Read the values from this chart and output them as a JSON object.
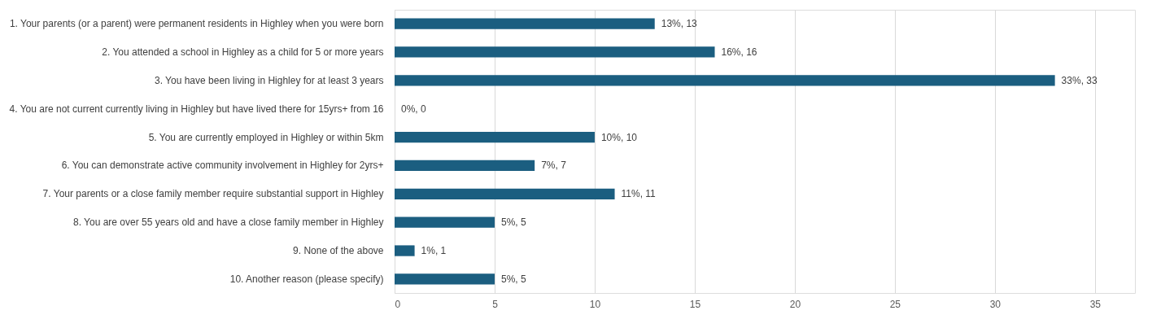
{
  "chart_data": {
    "type": "bar",
    "orientation": "horizontal",
    "categories": [
      "1. Your parents (or a parent) were permanent residents in Highley when you were born",
      "2. You attended a school in Highley as a child for 5 or more years",
      "3. You have been living in Highley for at least 3 years",
      "4. You are not current currently living in Highley but have lived there for 15yrs+ from 16",
      "5. You are currently employed in Highley or within 5km",
      "6. You can demonstrate active community involvement in Highley for 2yrs+",
      "7. Your parents or a close family member require substantial support in Highley",
      "8. You are over 55 years old and have a close family member in Highley",
      "9. None of the above",
      "10. Another reason (please specify)"
    ],
    "values": [
      13,
      16,
      33,
      0,
      10,
      7,
      11,
      5,
      1,
      5
    ],
    "value_labels": [
      "13%, 13",
      "16%, 16",
      "33%, 33",
      "0%, 0",
      "10%, 10",
      "7%, 7",
      "11%, 11",
      "5%, 5",
      "1%, 1",
      "5%, 5"
    ],
    "color": "#1b5e80",
    "xlim": [
      0,
      37
    ],
    "xticks": [
      0,
      5,
      10,
      15,
      20,
      25,
      30,
      35
    ],
    "grid": "x"
  }
}
